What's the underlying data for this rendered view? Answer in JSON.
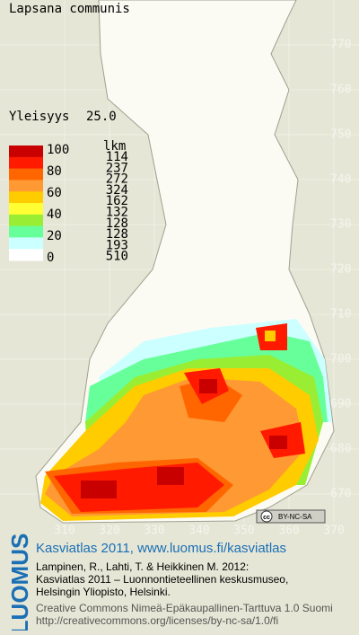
{
  "map": {
    "title": "Lapsana communis",
    "frequency_label": "Yleisyys",
    "frequency": "25.0",
    "legend": {
      "levels": [
        100,
        80,
        60,
        40,
        20,
        0
      ],
      "count_header": "lkm",
      "counts": [
        114,
        237,
        272,
        324,
        162,
        132,
        128,
        128,
        193,
        510
      ],
      "colors": [
        "#c80000",
        "#ff1a00",
        "#ff6600",
        "#ff9933",
        "#ffcc00",
        "#ffff33",
        "#99ee33",
        "#66ff99",
        "#ccffff",
        "#ffffff"
      ]
    },
    "grid": {
      "northing": [
        770,
        760,
        750,
        740,
        730,
        720,
        710,
        700,
        690,
        680,
        670
      ],
      "easting": [
        310,
        320,
        330,
        340,
        350,
        360,
        370
      ]
    },
    "license_badge": {
      "cc": "cc",
      "text": "BY-NC-SA"
    }
  },
  "footer": {
    "logo": "LUOMUS",
    "heading": "Kasviatlas 2011, www.luomus.fi/kasviatlas",
    "citation": [
      "Lampinen, R., Lahti, T. & Heikkinen M. 2012:",
      "Kasviatlas 2011 – Luonnontieteellinen keskusmuseo,",
      "Helsingin Yliopisto, Helsinki."
    ],
    "license": [
      "Creative Commons Nimeä-Epäkaupallinen-Tarttuva 1.0 Suomi",
      "http://creativecommons.org/licenses/by-nc-sa/1.0/fi"
    ]
  }
}
